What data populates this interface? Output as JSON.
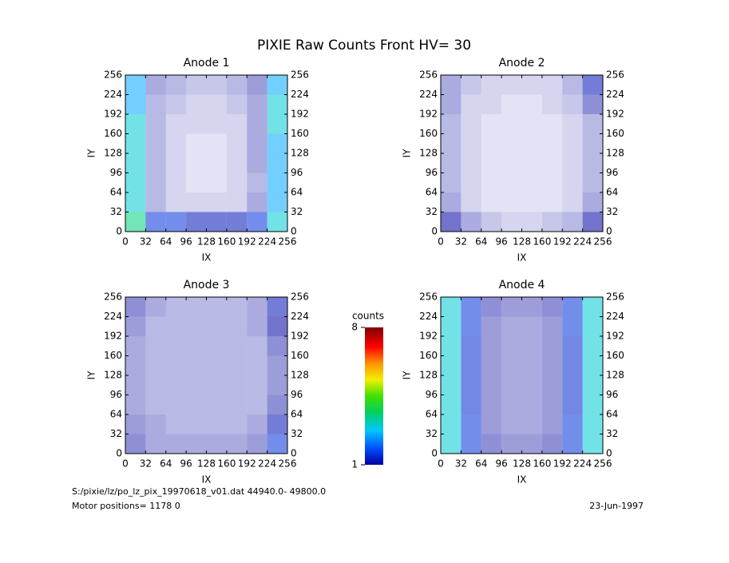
{
  "title": "PIXIE Raw Counts Front HV= 30",
  "chart_data": [
    {
      "type": "heatmap",
      "title": "Anode 1",
      "xlabel": "IX",
      "ylabel": "IY",
      "xlim": [
        0,
        256
      ],
      "ylim": [
        0,
        256
      ],
      "xticks": [
        0,
        32,
        64,
        96,
        128,
        160,
        192,
        224,
        256
      ],
      "yticks": [
        0,
        32,
        64,
        96,
        128,
        160,
        192,
        224,
        256
      ],
      "values": [
        [
          3.5,
          1.5,
          1.5,
          1.2,
          1.2,
          1.2,
          1.5,
          3
        ],
        [
          3,
          0.5,
          0.3,
          0.3,
          0.3,
          0.3,
          0.6,
          2.5
        ],
        [
          3,
          0.5,
          0.3,
          0.2,
          0.2,
          0.3,
          0.5,
          2.5
        ],
        [
          3,
          0.5,
          0.3,
          0.2,
          0.2,
          0.3,
          0.6,
          2.5
        ],
        [
          3,
          0.5,
          0.3,
          0.2,
          0.2,
          0.3,
          0.6,
          2.5
        ],
        [
          3,
          0.5,
          0.3,
          0.3,
          0.3,
          0.3,
          0.6,
          3
        ],
        [
          2.5,
          0.5,
          0.4,
          0.3,
          0.3,
          0.4,
          0.6,
          3
        ],
        [
          2.5,
          0.6,
          0.5,
          0.4,
          0.4,
          0.5,
          0.7,
          2.5
        ]
      ]
    },
    {
      "type": "heatmap",
      "title": "Anode 2",
      "xlabel": "IX",
      "ylabel": "IY",
      "xlim": [
        0,
        256
      ],
      "ylim": [
        0,
        256
      ],
      "xticks": [
        0,
        32,
        64,
        96,
        128,
        160,
        192,
        224,
        256
      ],
      "yticks": [
        0,
        32,
        64,
        96,
        128,
        160,
        192,
        224,
        256
      ],
      "values": [
        [
          1,
          0.6,
          0.4,
          0.3,
          0.3,
          0.4,
          0.5,
          1
        ],
        [
          0.6,
          0.3,
          0.2,
          0.2,
          0.2,
          0.2,
          0.3,
          0.6
        ],
        [
          0.5,
          0.3,
          0.2,
          0.2,
          0.2,
          0.2,
          0.3,
          0.5
        ],
        [
          0.5,
          0.3,
          0.2,
          0.2,
          0.2,
          0.2,
          0.3,
          0.5
        ],
        [
          0.5,
          0.3,
          0.2,
          0.2,
          0.2,
          0.2,
          0.3,
          0.5
        ],
        [
          0.5,
          0.3,
          0.2,
          0.2,
          0.2,
          0.2,
          0.3,
          0.5
        ],
        [
          0.6,
          0.3,
          0.3,
          0.2,
          0.2,
          0.3,
          0.4,
          0.8
        ],
        [
          0.6,
          0.4,
          0.3,
          0.3,
          0.3,
          0.3,
          0.5,
          1.2
        ]
      ]
    },
    {
      "type": "heatmap",
      "title": "Anode 3",
      "xlabel": "IX",
      "ylabel": "IY",
      "xlim": [
        0,
        256
      ],
      "ylim": [
        0,
        256
      ],
      "xticks": [
        0,
        32,
        64,
        96,
        128,
        160,
        192,
        224,
        256
      ],
      "yticks": [
        0,
        32,
        64,
        96,
        128,
        160,
        192,
        224,
        256
      ],
      "values": [
        [
          0.8,
          0.6,
          0.6,
          0.6,
          0.6,
          0.6,
          0.7,
          1.5
        ],
        [
          0.7,
          0.6,
          0.5,
          0.5,
          0.5,
          0.5,
          0.6,
          1.2
        ],
        [
          0.6,
          0.5,
          0.5,
          0.5,
          0.5,
          0.5,
          0.5,
          0.8
        ],
        [
          0.6,
          0.5,
          0.5,
          0.5,
          0.5,
          0.5,
          0.5,
          0.7
        ],
        [
          0.6,
          0.5,
          0.5,
          0.5,
          0.5,
          0.5,
          0.5,
          0.7
        ],
        [
          0.6,
          0.5,
          0.5,
          0.5,
          0.5,
          0.5,
          0.5,
          0.8
        ],
        [
          0.7,
          0.5,
          0.5,
          0.5,
          0.5,
          0.5,
          0.6,
          1
        ],
        [
          0.8,
          0.6,
          0.5,
          0.5,
          0.5,
          0.5,
          0.6,
          1.2
        ]
      ]
    },
    {
      "type": "heatmap",
      "title": "Anode 4",
      "xlabel": "IX",
      "ylabel": "IY",
      "xlim": [
        0,
        256
      ],
      "ylim": [
        0,
        256
      ],
      "xticks": [
        0,
        32,
        64,
        96,
        128,
        160,
        192,
        224,
        256
      ],
      "yticks": [
        0,
        32,
        64,
        96,
        128,
        160,
        192,
        224,
        256
      ],
      "values": [
        [
          3,
          1.5,
          0.8,
          0.7,
          0.7,
          0.8,
          1.5,
          3
        ],
        [
          3,
          1.5,
          0.7,
          0.6,
          0.6,
          0.7,
          1.5,
          3
        ],
        [
          3,
          1.4,
          0.7,
          0.6,
          0.6,
          0.7,
          1.4,
          3
        ],
        [
          3,
          1.4,
          0.7,
          0.6,
          0.6,
          0.7,
          1.4,
          3
        ],
        [
          3,
          1.4,
          0.7,
          0.6,
          0.6,
          0.7,
          1.4,
          3
        ],
        [
          3,
          1.4,
          0.7,
          0.6,
          0.6,
          0.7,
          1.4,
          3
        ],
        [
          3,
          1.5,
          0.7,
          0.6,
          0.6,
          0.7,
          1.5,
          3
        ],
        [
          3,
          1.5,
          0.8,
          0.7,
          0.7,
          0.8,
          1.5,
          3
        ]
      ]
    }
  ],
  "colorbar": {
    "label": "counts",
    "range": [
      1,
      8
    ],
    "ticks": [
      1,
      8
    ]
  },
  "footer": {
    "file": "S:/pixie/lz/po_lz_pix_19970618_v01.dat   44940.0- 49800.0",
    "motor": "Motor positions= 1178 0",
    "date": "23-Jun-1997"
  }
}
